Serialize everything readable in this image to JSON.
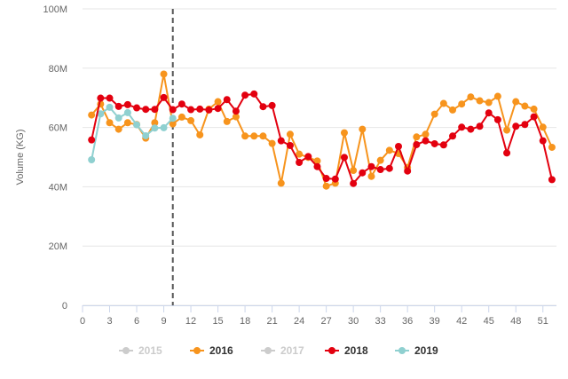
{
  "chart_data": {
    "type": "line",
    "ylabel": "Volume (KG)",
    "xlabel": "",
    "xlim": [
      0,
      52.5
    ],
    "ylim": [
      0,
      100000000
    ],
    "x_ticks": [
      0,
      3,
      6,
      9,
      12,
      15,
      18,
      21,
      24,
      27,
      30,
      33,
      36,
      39,
      42,
      45,
      48,
      51
    ],
    "y_ticks": [
      {
        "value": 0,
        "label": "0"
      },
      {
        "value": 20000000,
        "label": "20M"
      },
      {
        "value": 40000000,
        "label": "40M"
      },
      {
        "value": 60000000,
        "label": "60M"
      },
      {
        "value": 80000000,
        "label": "80M"
      },
      {
        "value": 100000000,
        "label": "100M"
      }
    ],
    "grid": true,
    "legend_position": "bottom-center",
    "marker_line_x": 10,
    "series": [
      {
        "name": "2015",
        "color": "#cccccc",
        "visible": false,
        "x": [],
        "values": []
      },
      {
        "name": "2016",
        "color": "#f7941d",
        "visible": true,
        "x": [
          1,
          2,
          3,
          4,
          5,
          6,
          7,
          8,
          9,
          10,
          11,
          12,
          13,
          14,
          15,
          16,
          17,
          18,
          19,
          20,
          21,
          22,
          23,
          24,
          25,
          26,
          27,
          28,
          29,
          30,
          31,
          32,
          33,
          34,
          35,
          36,
          37,
          38,
          39,
          40,
          41,
          42,
          43,
          44,
          45,
          46,
          47,
          48,
          49,
          50,
          51,
          52
        ],
        "values": [
          64200000,
          67900000,
          61600000,
          59400000,
          61600000,
          61000000,
          56400000,
          61600000,
          78000000,
          61200000,
          63500000,
          62300000,
          57500000,
          66200000,
          68700000,
          62000000,
          63600000,
          57100000,
          57100000,
          57100000,
          54600000,
          41200000,
          57700000,
          51000000,
          49900000,
          48700000,
          40200000,
          41200000,
          58200000,
          45500000,
          59400000,
          43500000,
          48900000,
          52300000,
          51200000,
          46500000,
          56800000,
          57700000,
          64500000,
          68100000,
          65900000,
          67900000,
          70300000,
          69000000,
          68400000,
          70500000,
          59100000,
          68700000,
          67200000,
          66200000,
          60100000,
          53300000
        ]
      },
      {
        "name": "2017",
        "color": "#cccccc",
        "visible": false,
        "x": [],
        "values": []
      },
      {
        "name": "2018",
        "color": "#e3000f",
        "visible": true,
        "x": [
          1,
          2,
          3,
          4,
          5,
          6,
          7,
          8,
          9,
          10,
          11,
          12,
          13,
          14,
          15,
          16,
          17,
          18,
          19,
          20,
          21,
          22,
          23,
          24,
          25,
          26,
          27,
          28,
          29,
          30,
          31,
          32,
          33,
          34,
          35,
          36,
          37,
          38,
          39,
          40,
          41,
          42,
          43,
          44,
          45,
          46,
          47,
          48,
          49,
          50,
          51,
          52
        ],
        "values": [
          55800000,
          69900000,
          69900000,
          67100000,
          67700000,
          66600000,
          66100000,
          66100000,
          70100000,
          66000000,
          67900000,
          66000000,
          66200000,
          65900000,
          66400000,
          69400000,
          65500000,
          70900000,
          71300000,
          67000000,
          67400000,
          55500000,
          53900000,
          48200000,
          50200000,
          46800000,
          42800000,
          42600000,
          49900000,
          41100000,
          44700000,
          46800000,
          45800000,
          46200000,
          53600000,
          45300000,
          54200000,
          55500000,
          54500000,
          54100000,
          57100000,
          60100000,
          59400000,
          60400000,
          64900000,
          62600000,
          51400000,
          60400000,
          61000000,
          63600000,
          55500000,
          42400000
        ]
      },
      {
        "name": "2019",
        "color": "#8fd0d0",
        "visible": true,
        "x": [
          1,
          2,
          3,
          4,
          5,
          6,
          7,
          8,
          9,
          10
        ],
        "values": [
          49100000,
          64600000,
          66800000,
          63200000,
          65000000,
          60900000,
          57200000,
          59800000,
          59900000,
          63100000
        ]
      }
    ]
  }
}
